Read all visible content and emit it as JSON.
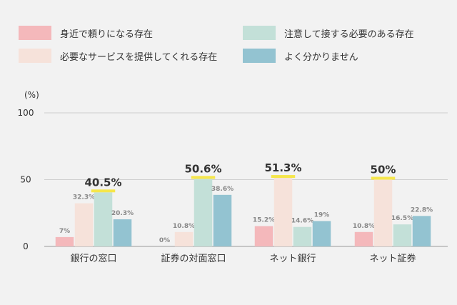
{
  "chart_data": {
    "type": "bar",
    "unit_label": "(%)",
    "y_ticks": [
      "0",
      "50",
      "100"
    ],
    "ylim": [
      0,
      100
    ],
    "grid": true,
    "legend_position": "top",
    "categories": [
      "銀行の窓口",
      "証券の対面窓口",
      "ネット銀行",
      "ネット証券"
    ],
    "series": [
      {
        "name": "身近で頼りになる存在",
        "color": "#f4b8bb",
        "values": [
          7,
          0,
          15.2,
          10.8
        ],
        "labels": [
          "7%",
          "0%",
          "15.2%",
          "10.8%"
        ]
      },
      {
        "name": "必要なサービスを提供してくれる存在",
        "color": "#f6e2da",
        "values": [
          32.3,
          10.8,
          51.3,
          50
        ],
        "labels": [
          "32.3%",
          "10.8%",
          "51.3%",
          "50%"
        ]
      },
      {
        "name": "注意して接する必要のある存在",
        "color": "#c3e0d8",
        "values": [
          40.5,
          50.6,
          14.6,
          16.5
        ],
        "labels": [
          "40.5%",
          "50.6%",
          "14.6%",
          "16.5%"
        ]
      },
      {
        "name": "よく分かりません",
        "color": "#93c3d1",
        "values": [
          20.3,
          38.6,
          19,
          22.8
        ],
        "labels": [
          "20.3%",
          "38.6%",
          "19%",
          "22.8%"
        ]
      }
    ],
    "highlight_series_index": [
      2,
      2,
      1,
      1
    ],
    "highlight_color": "#f5e64b"
  }
}
